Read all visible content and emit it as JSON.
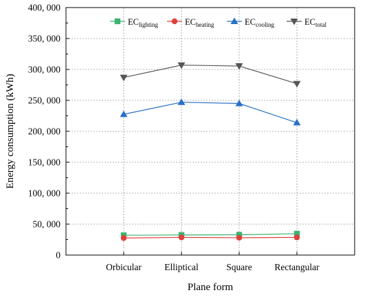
{
  "chart_data": {
    "type": "line",
    "title": "",
    "xlabel": "Plane form",
    "ylabel": "Energy consumption (kWh)",
    "categories": [
      "Orbicular",
      "Elliptical",
      "Square",
      "Rectangular"
    ],
    "ylim": [
      0,
      400000
    ],
    "ytick_values": [
      0,
      50000,
      100000,
      150000,
      200000,
      250000,
      300000,
      350000,
      400000
    ],
    "ytick_labels": [
      "0",
      "50, 000",
      "100, 000",
      "150, 000",
      "200, 000",
      "250, 000",
      "300, 000",
      "350, 000",
      "400, 000"
    ],
    "grid": true,
    "legend_position": "top",
    "series": [
      {
        "name": "EC",
        "name_sub": "lighting",
        "color": "#3cb371",
        "marker": "square",
        "values": [
          32000,
          32500,
          32800,
          34500
        ]
      },
      {
        "name": "EC",
        "name_sub": "heating",
        "color": "#e0403c",
        "marker": "circle",
        "values": [
          27500,
          28500,
          28000,
          28500
        ]
      },
      {
        "name": "EC",
        "name_sub": "cooling",
        "color": "#2a70c8",
        "marker": "triangle-up",
        "values": [
          227500,
          247000,
          245000,
          214000
        ]
      },
      {
        "name": "EC",
        "name_sub": "total",
        "color": "#555555",
        "marker": "triangle-down",
        "values": [
          287000,
          307000,
          305500,
          277000
        ]
      }
    ]
  }
}
